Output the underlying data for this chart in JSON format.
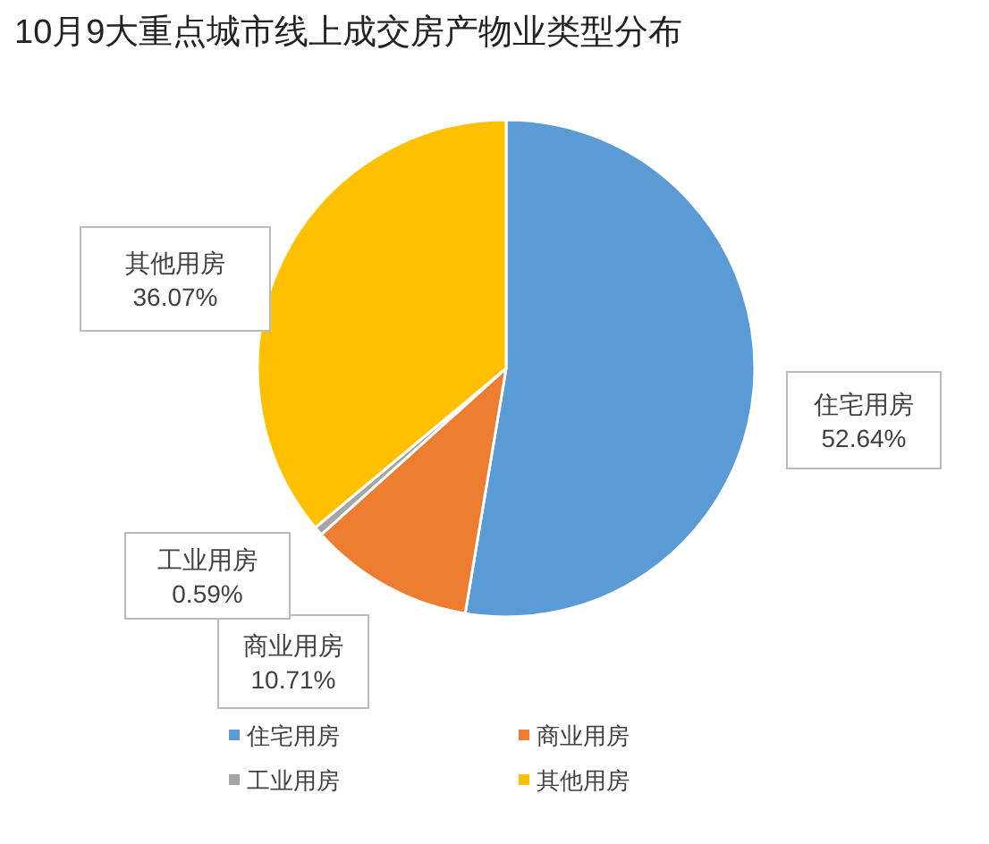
{
  "chart_data": {
    "type": "pie",
    "title": "10月9大重点城市线上成交房产物业类型分布",
    "categories": [
      "住宅用房",
      "商业用房",
      "工业用房",
      "其他用房"
    ],
    "values": [
      52.64,
      10.71,
      0.59,
      36.07
    ],
    "colors": [
      "#5b9bd5",
      "#ed7d31",
      "#a5a5a5",
      "#ffc000"
    ],
    "value_labels": [
      "52.64%",
      "10.71%",
      "0.59%",
      "36.07%"
    ],
    "legend": "bottom"
  }
}
